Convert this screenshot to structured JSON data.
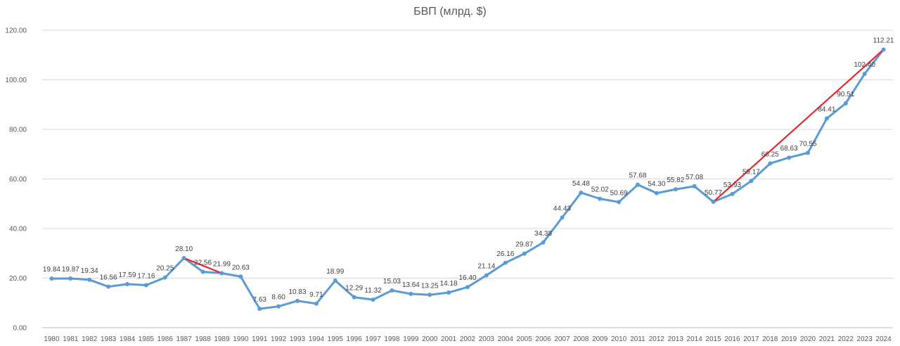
{
  "chart_data": {
    "type": "line",
    "title": "БВП (млрд. $)",
    "xlabel": "",
    "ylabel": "",
    "ylim": [
      0,
      120
    ],
    "yticks": [
      "0.00",
      "20.00",
      "40.00",
      "60.00",
      "80.00",
      "100.00",
      "120.00"
    ],
    "grid": true,
    "categories": [
      "1980",
      "1981",
      "1982",
      "1983",
      "1984",
      "1985",
      "1986",
      "1987",
      "1988",
      "1989",
      "1990",
      "1991",
      "1992",
      "1993",
      "1994",
      "1995",
      "1996",
      "1997",
      "1998",
      "1999",
      "2000",
      "2001",
      "2002",
      "2003",
      "2004",
      "2005",
      "2006",
      "2007",
      "2008",
      "2009",
      "2010",
      "2011",
      "2012",
      "2013",
      "2014",
      "2015",
      "2016",
      "2017",
      "2018",
      "2019",
      "2020",
      "2021",
      "2022",
      "2023",
      "2024"
    ],
    "series": [
      {
        "values": [
          19.84,
          19.87,
          19.34,
          16.56,
          17.59,
          17.16,
          20.25,
          28.1,
          22.56,
          21.99,
          20.63,
          7.63,
          8.6,
          10.83,
          9.71,
          18.99,
          12.29,
          11.32,
          15.03,
          13.64,
          13.25,
          14.18,
          16.4,
          21.14,
          26.16,
          29.87,
          34.38,
          44.43,
          54.48,
          52.02,
          50.69,
          57.68,
          54.3,
          55.82,
          57.08,
          50.77,
          53.93,
          59.17,
          66.25,
          68.63,
          70.55,
          84.41,
          90.51,
          102.4,
          112.21
        ],
        "labels": [
          "19.84",
          "19.87",
          "19.34",
          "16.56",
          "17.59",
          "17.16",
          "20.25",
          "28.10",
          "22.56",
          "21.99",
          "20.63",
          "7.63",
          "8.60",
          "10.83",
          "9.71",
          "18.99",
          "12.29",
          "11.32",
          "15.03",
          "13.64",
          "13.25",
          "14.18",
          "16.40",
          "21.14",
          "26.16",
          "29.87",
          "34.38",
          "44.43",
          "54.48",
          "52.02",
          "50.69",
          "57.68",
          "54.30",
          "55.82",
          "57.08",
          "50.77",
          "53.93",
          "59.17",
          "66.25",
          "68.63",
          "70.55",
          "84.41",
          "90.51",
          "102.40",
          "112.21"
        ],
        "color": "#5b9bd5"
      }
    ],
    "trend_lines": [
      {
        "from": "1987",
        "to": "1989",
        "color": "#e8262a"
      },
      {
        "from": "2015",
        "to": "2024",
        "color": "#e8262a"
      }
    ]
  }
}
